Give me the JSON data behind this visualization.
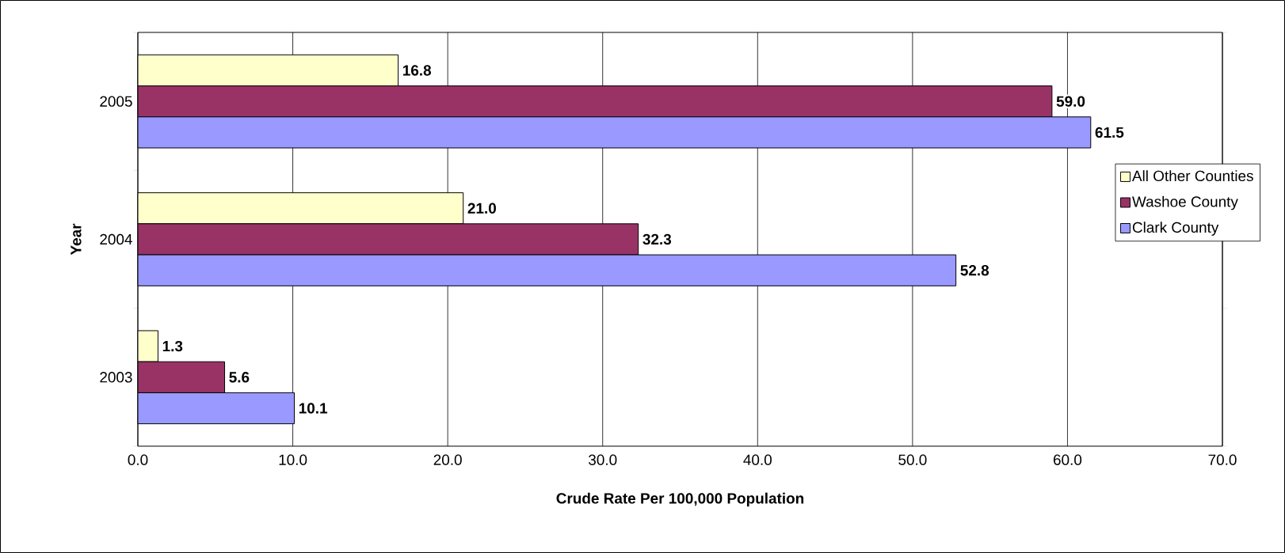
{
  "chart_data": {
    "type": "bar",
    "orientation": "horizontal",
    "categories": [
      "2005",
      "2004",
      "2003"
    ],
    "series": [
      {
        "name": "All Other Counties",
        "color": "#ffffcc",
        "values": [
          16.8,
          21.0,
          1.3
        ],
        "value_labels": [
          "16.8",
          "21.0",
          "1.3"
        ]
      },
      {
        "name": "Washoe County",
        "color": "#993366",
        "values": [
          59.0,
          32.3,
          5.6
        ],
        "value_labels": [
          "59.0",
          "32.3",
          "5.6"
        ]
      },
      {
        "name": "Clark County",
        "color": "#9999ff",
        "values": [
          61.5,
          52.8,
          10.1
        ],
        "value_labels": [
          "61.5",
          "52.8",
          "10.1"
        ]
      }
    ],
    "xlim": [
      0,
      70
    ],
    "xticks": [
      {
        "value": 0,
        "label": "0.0"
      },
      {
        "value": 10,
        "label": "10.0"
      },
      {
        "value": 20,
        "label": "20.0"
      },
      {
        "value": 30,
        "label": "30.0"
      },
      {
        "value": 40,
        "label": "40.0"
      },
      {
        "value": 50,
        "label": "50.0"
      },
      {
        "value": 60,
        "label": "60.0"
      },
      {
        "value": 70,
        "label": "70.0"
      }
    ],
    "xlabel": "Crude Rate Per 100,000 Population",
    "ylabel": "Year",
    "grid": "x",
    "legend": "right"
  }
}
